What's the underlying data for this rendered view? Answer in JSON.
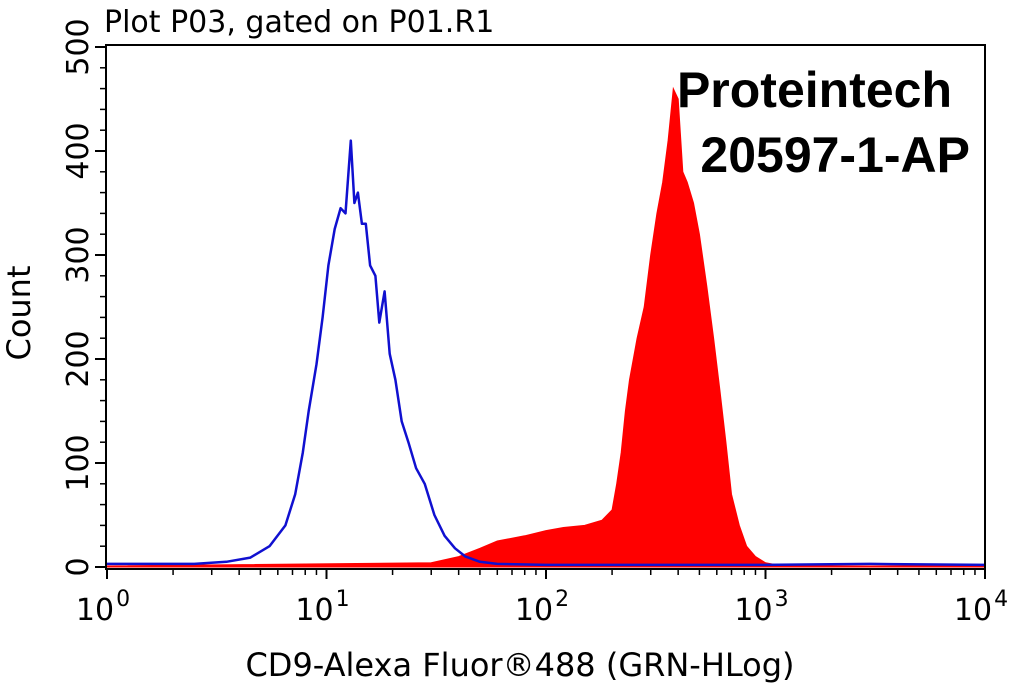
{
  "chart_data": {
    "type": "area",
    "title": "Plot P03, gated on P01.R1",
    "xlabel": "CD9-Alexa Fluor®488 (GRN-HLog)",
    "ylabel": "Count",
    "xscale": "log",
    "xlim": [
      1,
      10000
    ],
    "ylim": [
      0,
      500
    ],
    "x_ticks": [
      {
        "value": 1,
        "base": "10",
        "exp": "0"
      },
      {
        "value": 10,
        "base": "10",
        "exp": "1"
      },
      {
        "value": 100,
        "base": "10",
        "exp": "2"
      },
      {
        "value": 1000,
        "base": "10",
        "exp": "3"
      },
      {
        "value": 10000,
        "base": "10",
        "exp": "4"
      }
    ],
    "y_ticks": [
      "0",
      "100",
      "200",
      "300",
      "400",
      "500"
    ],
    "annotations": [
      "Proteintech",
      "20597-1-AP"
    ],
    "grid": false,
    "series": [
      {
        "style": "line",
        "color": "#1010d0",
        "x": [
          1,
          2.5,
          3.5,
          4.5,
          5.5,
          6.5,
          7.2,
          7.8,
          8.3,
          9.0,
          9.6,
          10.2,
          10.9,
          11.6,
          12.2,
          12.9,
          13.4,
          13.9,
          14.5,
          15.1,
          15.8,
          16.7,
          17.4,
          18.4,
          19.4,
          20.6,
          22.0,
          23.6,
          25.6,
          28.0,
          31.0,
          34.5,
          38.5,
          43.0,
          50.0,
          60.0,
          100,
          300,
          1000,
          3000,
          10000
        ],
        "y": [
          3,
          3,
          5,
          9,
          20,
          40,
          70,
          110,
          150,
          195,
          240,
          290,
          325,
          345,
          340,
          410,
          350,
          360,
          330,
          330,
          290,
          280,
          235,
          265,
          205,
          180,
          140,
          120,
          95,
          80,
          50,
          30,
          18,
          10,
          5,
          3,
          2,
          2,
          2,
          3,
          2
        ]
      },
      {
        "style": "filled",
        "color": "#ff0000",
        "x": [
          1,
          30,
          40,
          50,
          60,
          80,
          100,
          120,
          150,
          180,
          200,
          210,
          220,
          230,
          240,
          260,
          280,
          300,
          320,
          340,
          360,
          380,
          400,
          420,
          440,
          470,
          500,
          540,
          580,
          620,
          660,
          700,
          760,
          820,
          900,
          1000,
          1200,
          10000
        ],
        "y": [
          1,
          4,
          10,
          18,
          25,
          30,
          35,
          38,
          40,
          45,
          55,
          80,
          110,
          150,
          180,
          220,
          250,
          300,
          340,
          370,
          410,
          460,
          450,
          380,
          370,
          350,
          320,
          270,
          220,
          170,
          120,
          70,
          40,
          20,
          10,
          4,
          1,
          1
        ]
      }
    ]
  }
}
